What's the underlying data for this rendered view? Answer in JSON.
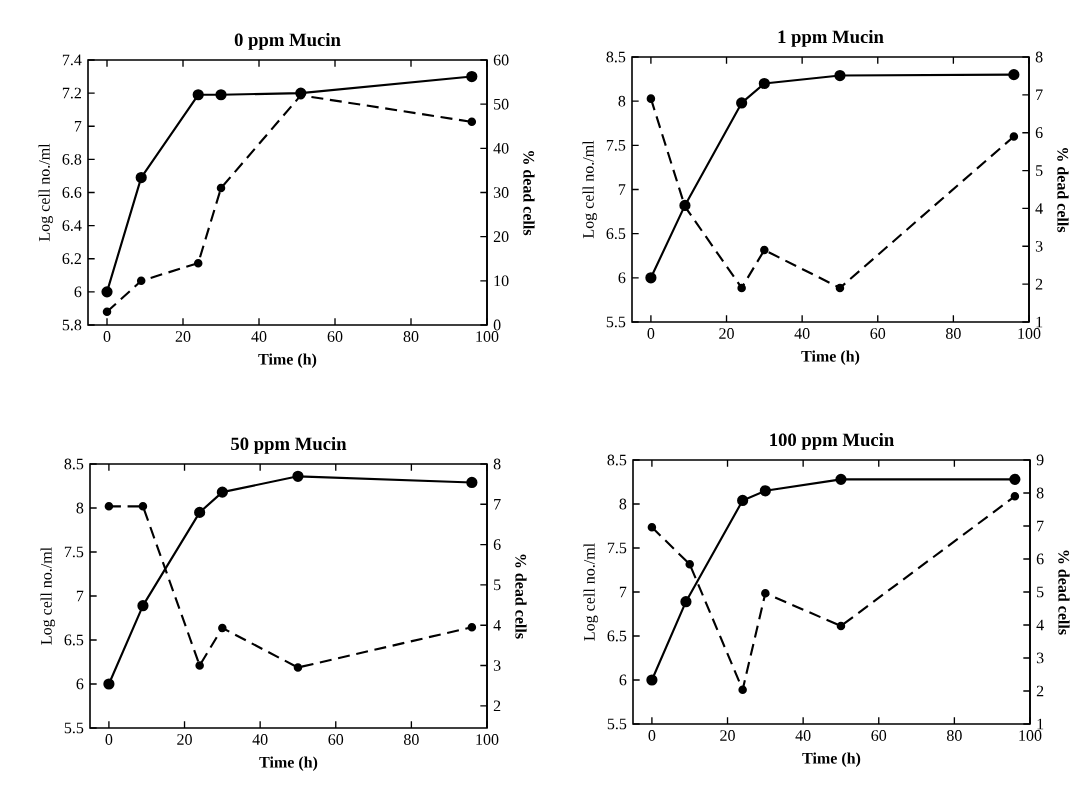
{
  "chart_data": [
    {
      "type": "line",
      "title": "0 ppm Mucin",
      "xlabel": "Time (h)",
      "ylabel": "Log cell no./ml",
      "y2label": "% dead cells",
      "marker": "circle",
      "xlim": [
        -5,
        100
      ],
      "xticks": [
        0,
        20,
        40,
        60,
        80,
        100
      ],
      "ylim": [
        5.8,
        7.4
      ],
      "yticks": [
        5.8,
        6,
        6.2,
        6.4,
        6.6,
        6.8,
        7,
        7.2,
        7.4
      ],
      "y2lim": [
        0,
        60
      ],
      "y2ticks": [
        0,
        10,
        20,
        30,
        40,
        50,
        60
      ],
      "series": [
        {
          "color": "#000000",
          "line_style": "solid",
          "x": [
            0,
            9,
            24,
            30,
            51,
            96
          ],
          "values": [
            6.0,
            6.69,
            7.19,
            7.19,
            7.2,
            7.3
          ]
        },
        {
          "color": "#000000",
          "line_style": "dashed",
          "axis": "y2",
          "x": [
            0,
            9,
            24,
            30,
            51,
            96
          ],
          "values": [
            3,
            10,
            14,
            31,
            52,
            46
          ]
        }
      ]
    },
    {
      "type": "line",
      "title": "1 ppm Mucin",
      "xlabel": "Time (h)",
      "ylabel": "Log cell no./ml",
      "y2label": "% dead cells",
      "marker": "circle",
      "xlim": [
        -5,
        100
      ],
      "xticks": [
        0,
        20,
        40,
        60,
        80,
        100
      ],
      "ylim": [
        5.5,
        8.5
      ],
      "yticks": [
        5.5,
        6,
        6.5,
        7,
        7.5,
        8,
        8.5
      ],
      "y2lim": [
        1,
        8
      ],
      "y2ticks": [
        1,
        2,
        3,
        4,
        5,
        6,
        7,
        8
      ],
      "series": [
        {
          "color": "#000000",
          "line_style": "solid",
          "x": [
            0,
            9,
            24,
            30,
            50,
            96
          ],
          "values": [
            6.0,
            6.82,
            7.98,
            8.2,
            8.29,
            8.3
          ]
        },
        {
          "color": "#000000",
          "line_style": "dashed",
          "axis": "y2",
          "x": [
            0,
            9,
            24,
            30,
            50,
            96
          ],
          "values": [
            6.9,
            4.05,
            1.9,
            2.9,
            1.9,
            5.9
          ]
        }
      ]
    },
    {
      "type": "line",
      "title": "50 ppm Mucin",
      "xlabel": "Time (h)",
      "ylabel": "Log cell no./ml",
      "y2label": "% dead cells",
      "marker": "circle",
      "xlim": [
        -5,
        100
      ],
      "xticks": [
        0,
        20,
        40,
        60,
        80,
        100
      ],
      "ylim": [
        5.5,
        8.5
      ],
      "yticks": [
        5.5,
        6,
        6.5,
        7,
        7.5,
        8,
        8.5
      ],
      "y2lim": [
        1.45,
        8
      ],
      "y2ticks": [
        2,
        3,
        4,
        5,
        6,
        7,
        8
      ],
      "series": [
        {
          "color": "#000000",
          "line_style": "solid",
          "x": [
            0,
            9,
            24,
            30,
            50,
            96
          ],
          "values": [
            6.0,
            6.89,
            7.95,
            8.18,
            8.36,
            8.29
          ]
        },
        {
          "color": "#000000",
          "line_style": "dashed",
          "axis": "y2",
          "x": [
            0,
            9,
            24,
            30,
            50,
            96
          ],
          "values": [
            6.95,
            6.95,
            3.0,
            3.93,
            2.95,
            3.95
          ]
        }
      ]
    },
    {
      "type": "line",
      "title": "100 ppm Mucin",
      "xlabel": "Time (h)",
      "ylabel": "Log cell no./ml",
      "y2label": "% dead cells",
      "marker": "circle",
      "xlim": [
        -5,
        100
      ],
      "xticks": [
        0,
        20,
        40,
        60,
        80,
        100
      ],
      "ylim": [
        5.5,
        8.5
      ],
      "yticks": [
        5.5,
        6,
        6.5,
        7,
        7.5,
        8,
        8.5
      ],
      "y2lim": [
        1,
        9
      ],
      "y2ticks": [
        1,
        2,
        3,
        4,
        5,
        6,
        7,
        8,
        9
      ],
      "series": [
        {
          "color": "#000000",
          "line_style": "solid",
          "x": [
            0,
            9,
            24,
            30,
            50,
            96
          ],
          "values": [
            6.0,
            6.89,
            8.04,
            8.15,
            8.28,
            8.28
          ]
        },
        {
          "color": "#000000",
          "line_style": "dashed",
          "axis": "y2",
          "x": [
            0,
            10,
            24,
            30,
            50,
            96
          ],
          "values": [
            6.96,
            5.84,
            2.04,
            4.96,
            3.97,
            7.9
          ]
        }
      ]
    }
  ]
}
